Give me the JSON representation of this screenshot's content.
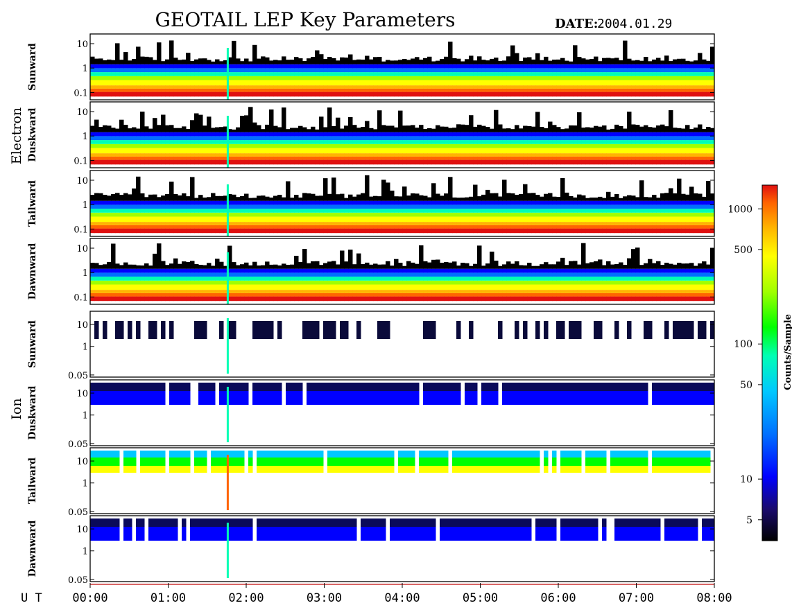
{
  "header": {
    "title": "GEOTAIL LEP Key Parameters",
    "date_label": "DATE:",
    "date_value": "2004.01.29"
  },
  "groups": {
    "electron": "Electron",
    "ion": "Ion"
  },
  "x_axis": {
    "prefix": "U T",
    "ticks": [
      "00:00",
      "01:00",
      "02:00",
      "03:00",
      "04:00",
      "05:00",
      "06:00",
      "07:00",
      "08:00"
    ]
  },
  "colorbar": {
    "label": "Counts/Sample",
    "ticks": [
      "1000",
      "500",
      "100",
      "50",
      "10",
      "5"
    ],
    "tick_values": [
      1000,
      500,
      100,
      50,
      10,
      5
    ],
    "range": [
      3.5,
      1500
    ],
    "scale": "log",
    "colormap": [
      "#000000",
      "#1a0a6e",
      "#0000ff",
      "#0070ff",
      "#00c8ff",
      "#00ffb4",
      "#00ff00",
      "#a0ff00",
      "#ffff00",
      "#ffb400",
      "#ff6400",
      "#e01010"
    ]
  },
  "chart_data": {
    "type": "heatmap",
    "x_range": [
      "00:00",
      "08:00"
    ],
    "y_scale": "log",
    "panels": [
      {
        "group": "Electron",
        "name": "Sunward",
        "y_ticks": [
          "10",
          "1",
          "0.1"
        ],
        "y_range": [
          0.05,
          25
        ]
      },
      {
        "group": "Electron",
        "name": "Duskward",
        "y_ticks": [
          "10",
          "1",
          "0.1"
        ],
        "y_range": [
          0.05,
          25
        ]
      },
      {
        "group": "Electron",
        "name": "Tailward",
        "y_ticks": [
          "10",
          "1",
          "0.1"
        ],
        "y_range": [
          0.05,
          25
        ]
      },
      {
        "group": "Electron",
        "name": "Dawnward",
        "y_ticks": [
          "10",
          "1",
          "0.1"
        ],
        "y_range": [
          0.05,
          25
        ]
      },
      {
        "group": "Ion",
        "name": "Sunward",
        "y_ticks": [
          "10",
          "1",
          "0.05"
        ],
        "y_range": [
          0.04,
          40
        ]
      },
      {
        "group": "Ion",
        "name": "Duskward",
        "y_ticks": [
          "10",
          "1",
          "0.05"
        ],
        "y_range": [
          0.04,
          40
        ]
      },
      {
        "group": "Ion",
        "name": "Tailward",
        "y_ticks": [
          "10",
          "1",
          "0.05"
        ],
        "y_range": [
          0.04,
          40
        ]
      },
      {
        "group": "Ion",
        "name": "Dawnward",
        "y_ticks": [
          "10",
          "1",
          "0.05"
        ],
        "y_range": [
          0.04,
          40
        ]
      }
    ],
    "grid": false
  }
}
